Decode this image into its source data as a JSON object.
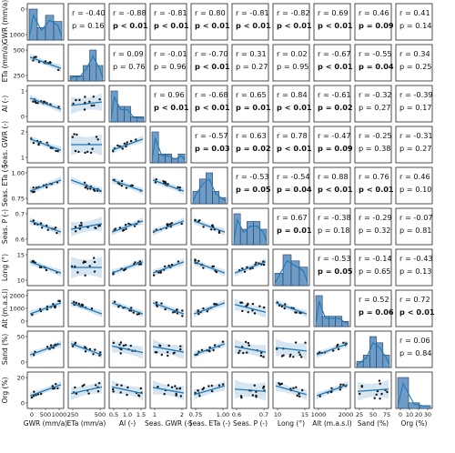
{
  "chart_data": {
    "type": "scatter",
    "title": "",
    "variables": [
      {
        "name": "GWR (mm/a)",
        "ticks": [
          "0",
          "500",
          "1000"
        ]
      },
      {
        "name": "ETa (mm/a)",
        "ticks": [
          "250",
          "500"
        ]
      },
      {
        "name": "AI (-)",
        "ticks": [
          "0.5",
          "1.0",
          "1.5"
        ]
      },
      {
        "name": "Seas. GWR (-)",
        "ticks": [
          "1",
          "2"
        ]
      },
      {
        "name": "Seas. ETa (-)",
        "ticks": [
          "0.75",
          "1.00"
        ]
      },
      {
        "name": "Seas. P (-)",
        "ticks": [
          "0.6",
          "0.7"
        ]
      },
      {
        "name": "Long (°)",
        "ticks": [
          "10",
          "15"
        ]
      },
      {
        "name": "Alt (m.a.s.l)",
        "ticks": [
          "1000",
          "2000"
        ]
      },
      {
        "name": "Sand (%)",
        "ticks": [
          "25",
          "50",
          "75"
        ]
      },
      {
        "name": "Org (%)",
        "ticks": [
          "0",
          "10",
          "20",
          "30"
        ]
      }
    ],
    "y_ticks": [
      [
        "0",
        "1000"
      ],
      [
        "500",
        "250"
      ],
      [
        "1",
        "0"
      ],
      [
        "2",
        "1"
      ],
      [
        "1.00",
        "0.75"
      ],
      [
        "0.7",
        "0.6"
      ],
      [
        "15",
        "10"
      ],
      [
        "2000",
        "1000",
        "0"
      ],
      [
        "50",
        "0"
      ],
      [
        "20",
        "0"
      ]
    ],
    "correlations": [
      {
        "row": 0,
        "col": 1,
        "r": "r = -0.40",
        "p": "p = 0.16",
        "significant": false
      },
      {
        "row": 0,
        "col": 2,
        "r": "r = -0.88",
        "p": "p < 0.01",
        "significant": true
      },
      {
        "row": 0,
        "col": 3,
        "r": "r = -0.81",
        "p": "p < 0.01",
        "significant": true
      },
      {
        "row": 0,
        "col": 4,
        "r": "r = 0.80",
        "p": "p < 0.01",
        "significant": true
      },
      {
        "row": 0,
        "col": 5,
        "r": "r = -0.81",
        "p": "p < 0.01",
        "significant": true
      },
      {
        "row": 0,
        "col": 6,
        "r": "r = -0.82",
        "p": "p < 0.01",
        "significant": true
      },
      {
        "row": 0,
        "col": 7,
        "r": "r = 0.69",
        "p": "p < 0.01",
        "significant": true
      },
      {
        "row": 0,
        "col": 8,
        "r": "r = 0.46",
        "p": "p = 0.09",
        "significant": true
      },
      {
        "row": 0,
        "col": 9,
        "r": "r = 0.41",
        "p": "p = 0.14",
        "significant": false
      },
      {
        "row": 1,
        "col": 2,
        "r": "r = 0.09",
        "p": "p = 0.76",
        "significant": false
      },
      {
        "row": 1,
        "col": 3,
        "r": "r = -0.01",
        "p": "p = 0.96",
        "significant": false
      },
      {
        "row": 1,
        "col": 4,
        "r": "r = -0.70",
        "p": "p < 0.01",
        "significant": true
      },
      {
        "row": 1,
        "col": 5,
        "r": "r = 0.31",
        "p": "p = 0.27",
        "significant": false
      },
      {
        "row": 1,
        "col": 6,
        "r": "r = 0.02",
        "p": "p = 0.95",
        "significant": false
      },
      {
        "row": 1,
        "col": 7,
        "r": "r = -0.67",
        "p": "p < 0.01",
        "significant": true
      },
      {
        "row": 1,
        "col": 8,
        "r": "r = -0.55",
        "p": "p = 0.04",
        "significant": true
      },
      {
        "row": 1,
        "col": 9,
        "r": "r = 0.34",
        "p": "p = 0.25",
        "significant": false
      },
      {
        "row": 2,
        "col": 3,
        "r": "r = 0.96",
        "p": "p < 0.01",
        "significant": true
      },
      {
        "row": 2,
        "col": 4,
        "r": "r = -0.68",
        "p": "p < 0.01",
        "significant": true
      },
      {
        "row": 2,
        "col": 5,
        "r": "r = 0.65",
        "p": "p = 0.01",
        "significant": true
      },
      {
        "row": 2,
        "col": 6,
        "r": "r = 0.84",
        "p": "p < 0.01",
        "significant": true
      },
      {
        "row": 2,
        "col": 7,
        "r": "r = -0.61",
        "p": "p = 0.02",
        "significant": true
      },
      {
        "row": 2,
        "col": 8,
        "r": "r = -0.32",
        "p": "p = 0.27",
        "significant": false
      },
      {
        "row": 2,
        "col": 9,
        "r": "r = -0.39",
        "p": "p = 0.17",
        "significant": false
      },
      {
        "row": 3,
        "col": 4,
        "r": "r = -0.57",
        "p": "p = 0.03",
        "significant": true
      },
      {
        "row": 3,
        "col": 5,
        "r": "r = 0.63",
        "p": "p = 0.02",
        "significant": true
      },
      {
        "row": 3,
        "col": 6,
        "r": "r = 0.78",
        "p": "p < 0.01",
        "significant": true
      },
      {
        "row": 3,
        "col": 7,
        "r": "r = -0.47",
        "p": "p = 0.09",
        "significant": true
      },
      {
        "row": 3,
        "col": 8,
        "r": "r = -0.25",
        "p": "p = 0.38",
        "significant": false
      },
      {
        "row": 3,
        "col": 9,
        "r": "r = -0.31",
        "p": "p = 0.27",
        "significant": false
      },
      {
        "row": 4,
        "col": 5,
        "r": "r = -0.53",
        "p": "p = 0.05",
        "significant": true
      },
      {
        "row": 4,
        "col": 6,
        "r": "r = -0.54",
        "p": "p = 0.04",
        "significant": true
      },
      {
        "row": 4,
        "col": 7,
        "r": "r = 0.88",
        "p": "p < 0.01",
        "significant": true
      },
      {
        "row": 4,
        "col": 8,
        "r": "r = 0.76",
        "p": "p < 0.01",
        "significant": true
      },
      {
        "row": 4,
        "col": 9,
        "r": "r = 0.46",
        "p": "p = 0.10",
        "significant": false
      },
      {
        "row": 5,
        "col": 6,
        "r": "r = 0.67",
        "p": "p = 0.01",
        "significant": true
      },
      {
        "row": 5,
        "col": 7,
        "r": "r = -0.38",
        "p": "p = 0.18",
        "significant": false
      },
      {
        "row": 5,
        "col": 8,
        "r": "r = -0.29",
        "p": "p = 0.32",
        "significant": false
      },
      {
        "row": 5,
        "col": 9,
        "r": "r = -0.07",
        "p": "p = 0.81",
        "significant": false
      },
      {
        "row": 6,
        "col": 7,
        "r": "r = -0.53",
        "p": "p = 0.05",
        "significant": true
      },
      {
        "row": 6,
        "col": 8,
        "r": "r = -0.14",
        "p": "p = 0.65",
        "significant": false
      },
      {
        "row": 6,
        "col": 9,
        "r": "r = -0.43",
        "p": "p = 0.13",
        "significant": false
      },
      {
        "row": 7,
        "col": 8,
        "r": "r = 0.52",
        "p": "p = 0.06",
        "significant": true
      },
      {
        "row": 7,
        "col": 9,
        "r": "r = 0.72",
        "p": "p < 0.01",
        "significant": true
      },
      {
        "row": 8,
        "col": 9,
        "r": "r = 0.06",
        "p": "p = 0.84",
        "significant": false
      }
    ],
    "histogram_counts": [
      [
        5,
        2,
        4,
        3
      ],
      [
        1,
        1,
        3,
        6,
        3
      ],
      [
        6,
        3,
        3,
        1,
        1
      ],
      [
        7,
        2,
        2,
        1,
        2
      ],
      [
        2,
        4,
        5,
        2,
        1
      ],
      [
        4,
        2,
        3,
        3,
        2
      ],
      [
        2,
        5,
        4,
        3
      ],
      [
        6,
        2,
        2,
        2,
        1
      ],
      [
        1,
        2,
        5,
        4,
        2
      ],
      [
        11,
        2,
        1
      ]
    ],
    "fit_directions": [
      [
        0,
        -1,
        -1,
        -1,
        1,
        -1,
        -1,
        1,
        1,
        1
      ],
      [
        -1,
        0,
        0.3,
        0,
        -1,
        0.5,
        0,
        -1,
        -1,
        0.6
      ],
      [
        -1,
        0.3,
        0,
        1,
        -1,
        1,
        1,
        -1,
        -0.6,
        -0.6
      ],
      [
        -1,
        0,
        1,
        0,
        -1,
        1,
        1,
        -1,
        -0.5,
        -0.5
      ],
      [
        1,
        -1,
        -1,
        -1,
        0,
        -1,
        -1,
        1,
        1,
        0.8
      ],
      [
        -1,
        0.5,
        1,
        1,
        -1,
        0,
        1,
        -0.7,
        -0.5,
        -0.2
      ],
      [
        -1,
        0,
        1,
        1,
        -1,
        1,
        0,
        -1,
        -0.3,
        -0.8
      ],
      [
        1,
        -1,
        -1,
        -1,
        1,
        -0.7,
        -1,
        0,
        1,
        1
      ],
      [
        1,
        -1,
        -0.6,
        -0.5,
        1,
        -0.5,
        -0.3,
        1,
        0,
        0.2
      ],
      [
        1,
        0.6,
        -0.6,
        -0.5,
        0.8,
        -0.2,
        -0.8,
        1,
        0.2,
        0
      ]
    ],
    "colors": {
      "bar": "#6e9cc7",
      "bar_edge": "#1f3f66",
      "line": "#1f77b4",
      "band": "#d6e5f2",
      "point": "#111111"
    },
    "grid": false,
    "legend": "none"
  }
}
